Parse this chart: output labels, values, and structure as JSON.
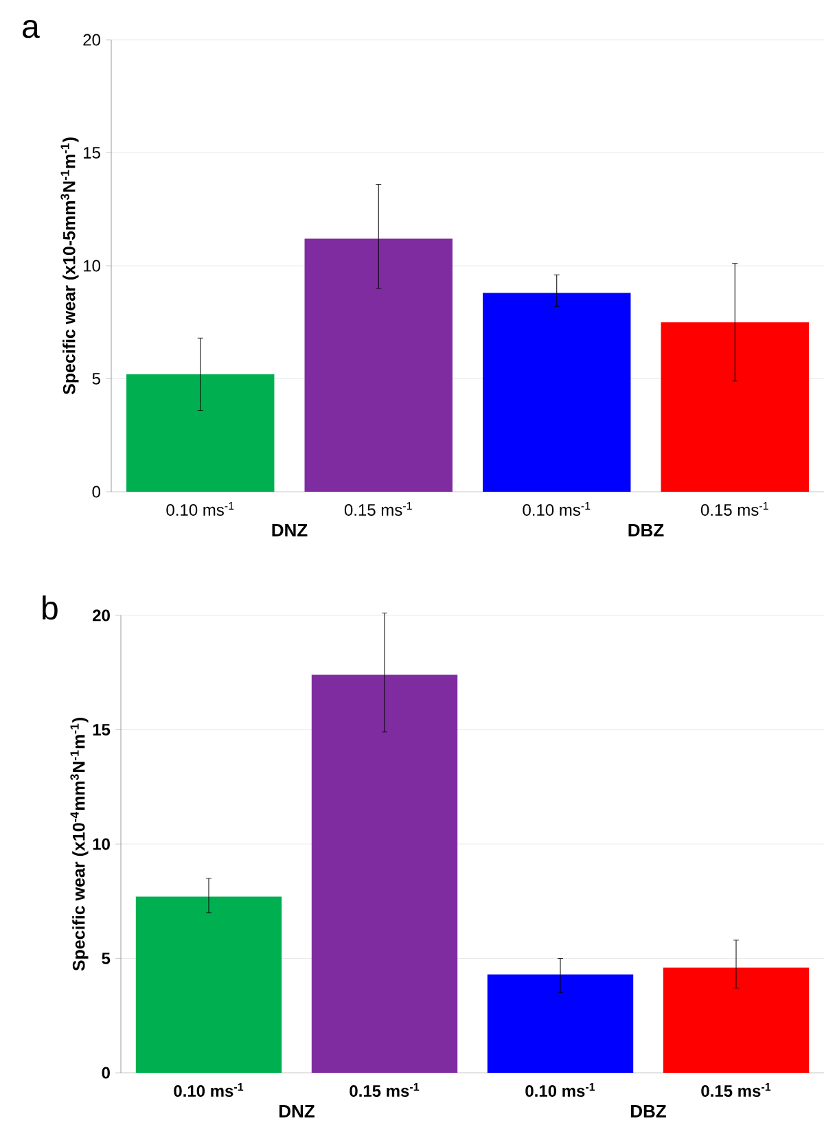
{
  "chart_data": [
    {
      "type": "bar",
      "title": "a",
      "ylabel": "Specific wear (x10-5mm$^{3}$N$^{-1}$m$^{-1}$)",
      "categories": [
        "0.10 ms$^{-1}$",
        "0.15 ms$^{-1}$",
        "0.10 ms$^{-1}$",
        "0.15 ms$^{-1}$"
      ],
      "values": [
        5.2,
        11.2,
        8.8,
        7.5
      ],
      "colors": [
        "#00b050",
        "#7f2ca0",
        "#0000ff",
        "#ff0000"
      ],
      "errors": [
        [
          3.6,
          6.8
        ],
        [
          9.0,
          13.6
        ],
        [
          8.2,
          9.6
        ],
        [
          4.9,
          10.1
        ]
      ],
      "ylim": [
        0,
        20
      ],
      "yticks": [
        0,
        5,
        10,
        15,
        20
      ],
      "grid": "y",
      "annotations": [
        "DNZ",
        "DBZ"
      ]
    },
    {
      "type": "bar",
      "title": "b",
      "ylabel": "Specific wear (x10$^{-4}$mm$^{3}$N$^{-1}$m$^{-1}$)",
      "categories": [
        "0.10 ms$^{-1}$",
        "0.15 ms$^{-1}$",
        "0.10 ms$^{-1}$",
        "0.15 ms$^{-1}$"
      ],
      "values": [
        7.7,
        17.4,
        4.3,
        4.6
      ],
      "colors": [
        "#00b050",
        "#7f2ca0",
        "#0000ff",
        "#ff0000"
      ],
      "errors": [
        [
          7.0,
          8.5
        ],
        [
          14.9,
          20.1
        ],
        [
          3.5,
          5.0
        ],
        [
          3.7,
          5.8
        ]
      ],
      "ylim": [
        0,
        20
      ],
      "yticks": [
        0,
        5,
        10,
        15,
        20
      ],
      "grid": "y",
      "annotations": [
        "DNZ",
        "DBZ"
      ]
    }
  ]
}
